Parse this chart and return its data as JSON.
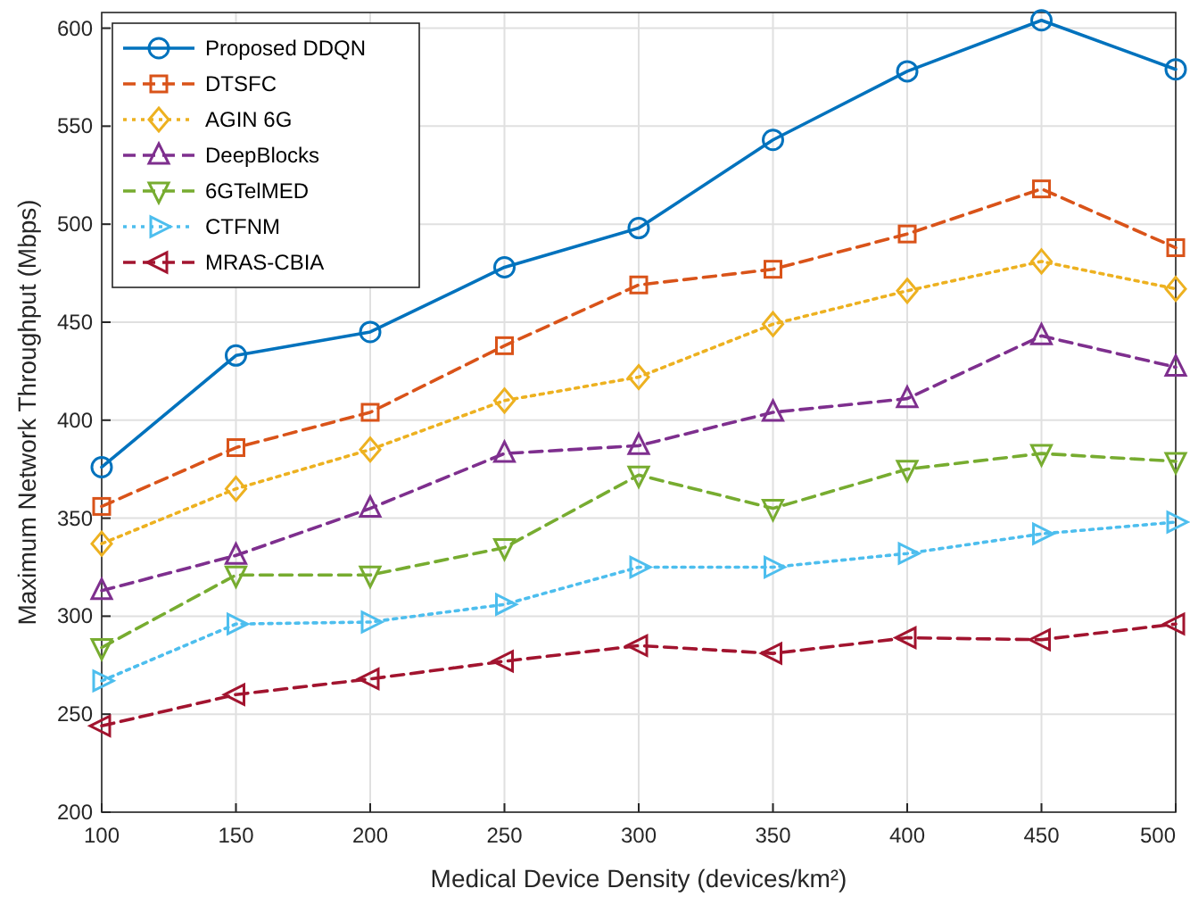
{
  "chart_data": {
    "type": "line",
    "xlabel": "Medical Device Density (devices/km²)",
    "ylabel": "Maximum Network Throughput (Mbps)",
    "x": [
      100,
      150,
      200,
      250,
      300,
      350,
      400,
      450,
      500
    ],
    "xlim": [
      100,
      500
    ],
    "xticks": [
      100,
      150,
      200,
      250,
      300,
      350,
      400,
      450,
      500
    ],
    "ylim": [
      200,
      608
    ],
    "yticks": [
      200,
      250,
      300,
      350,
      400,
      450,
      500,
      550,
      600
    ],
    "grid": true,
    "legend": "top left",
    "series": [
      {
        "name": "Proposed DDQN",
        "color": "#0072bd",
        "marker": "circle",
        "line_style": "solid",
        "values": [
          376,
          433,
          445,
          478,
          498,
          543,
          578,
          604,
          579
        ]
      },
      {
        "name": "DTSFC",
        "color": "#d95319",
        "marker": "square",
        "line_style": "dashed",
        "values": [
          356,
          386,
          404,
          438,
          469,
          477,
          495,
          518,
          488
        ]
      },
      {
        "name": "AGIN 6G",
        "color": "#edb120",
        "marker": "diamond",
        "line_style": "dotted",
        "values": [
          337,
          365,
          385,
          410,
          422,
          449,
          466,
          481,
          467
        ]
      },
      {
        "name": "DeepBlocks",
        "color": "#7e2f8e",
        "marker": "triangle",
        "line_style": "dashed",
        "values": [
          313,
          331,
          355,
          383,
          387,
          404,
          411,
          443,
          427
        ]
      },
      {
        "name": "6GTelMED",
        "color": "#77ac30",
        "marker": "triangle",
        "line_style": "dashed",
        "values": [
          284,
          321,
          321,
          335,
          372,
          355,
          375,
          383,
          379
        ]
      },
      {
        "name": "CTFNM",
        "color": "#4dbeee",
        "marker": "triangle",
        "line_style": "dotted",
        "values": [
          267,
          296,
          297,
          306,
          325,
          325,
          332,
          342,
          348
        ]
      },
      {
        "name": "MRAS-CBIA",
        "color": "#a2142f",
        "marker": "triangle",
        "line_style": "dashed",
        "values": [
          244,
          260,
          268,
          277,
          285,
          281,
          289,
          288,
          296
        ]
      }
    ]
  }
}
